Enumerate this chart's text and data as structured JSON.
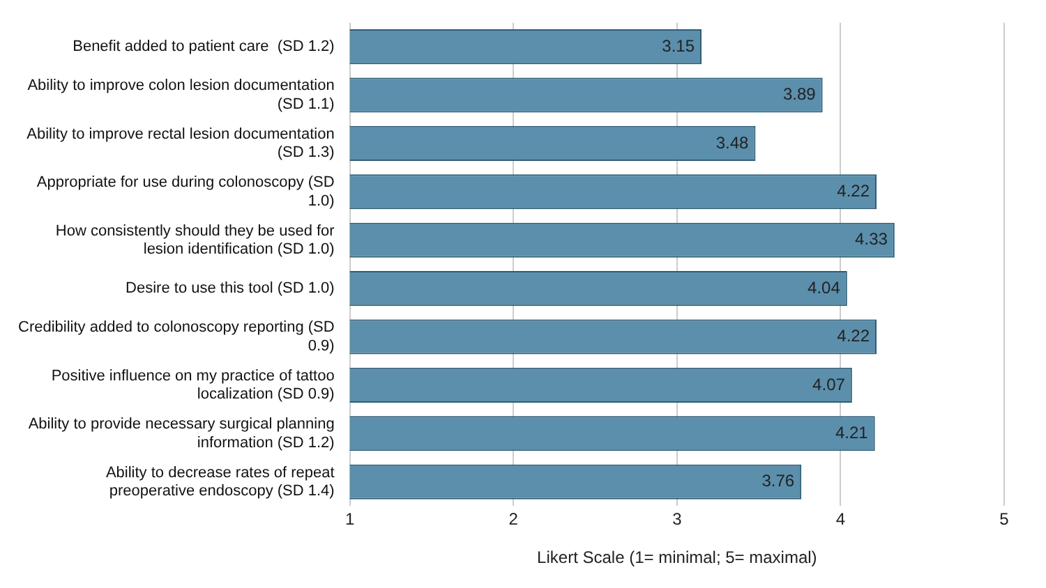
{
  "chart_data": {
    "type": "bar",
    "orientation": "horizontal",
    "xlabel": "Likert Scale (1= minimal; 5= maximal)",
    "categories": [
      "Benefit added to patient care  (SD 1.2)",
      "Ability to improve colon lesion documentation (SD 1.1)",
      "Ability to improve rectal lesion documentation (SD 1.3)",
      "Appropriate for use during colonoscopy (SD 1.0)",
      "How consistently should they be used for lesion identification (SD 1.0)",
      "Desire to use this tool (SD 1.0)",
      "Credibility added to colonoscopy reporting (SD 0.9)",
      "Positive influence on my practice of tattoo localization (SD 0.9)",
      "Ability to provide necessary surgical planning information (SD 1.2)",
      "Ability to decrease rates of repeat preoperative endoscopy (SD 1.4)"
    ],
    "values": [
      3.15,
      3.89,
      3.48,
      4.22,
      4.33,
      4.04,
      4.22,
      4.07,
      4.21,
      3.76
    ],
    "color": "#5b8fac",
    "xlim": [
      1,
      5
    ],
    "xticks": [
      1,
      2,
      3,
      4,
      5
    ],
    "grid": "x",
    "data_labels": true,
    "legend": false
  }
}
